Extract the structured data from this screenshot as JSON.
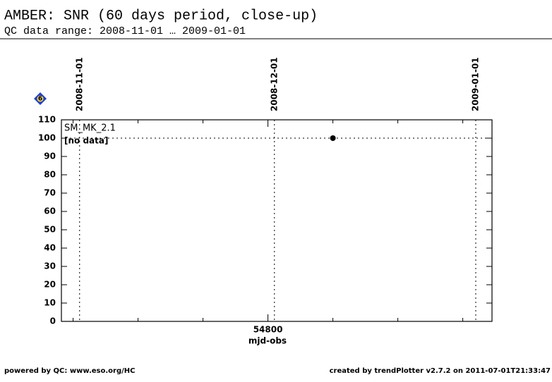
{
  "chart_data": {
    "type": "scatter",
    "title": "AMBER: SNR (60 days period, close-up)",
    "subtitle": "QC data range: 2008-11-01 … 2009-01-01",
    "badge": "6",
    "x_label": "mjd-obs",
    "series": [
      {
        "name": "SM_MK_2.1",
        "color": "#000000",
        "x": [
          54810
        ],
        "values": [
          100
        ]
      }
    ],
    "annotation": "[no data]",
    "annotation_color": "#ff0000",
    "reference_value": 100,
    "date_markers": [
      {
        "value": 54771,
        "label": "2008-11-01"
      },
      {
        "value": 54801,
        "label": "2008-12-01"
      },
      {
        "value": 54832,
        "label": "2009-01-01"
      }
    ],
    "xlim": [
      54768.2,
      54834.5
    ],
    "xticks": [
      54800
    ],
    "xticks_minor": [
      54770,
      54780,
      54790,
      54810,
      54820,
      54830
    ],
    "ylim": [
      0,
      110
    ],
    "yticks": [
      0,
      10,
      20,
      30,
      40,
      50,
      60,
      70,
      80,
      90,
      100,
      110
    ],
    "footer_left": "powered by QC: www.eso.org/HC",
    "footer_right": "created by trendPlotter v2.7.2 on 2011-07-01T21:33:47"
  }
}
